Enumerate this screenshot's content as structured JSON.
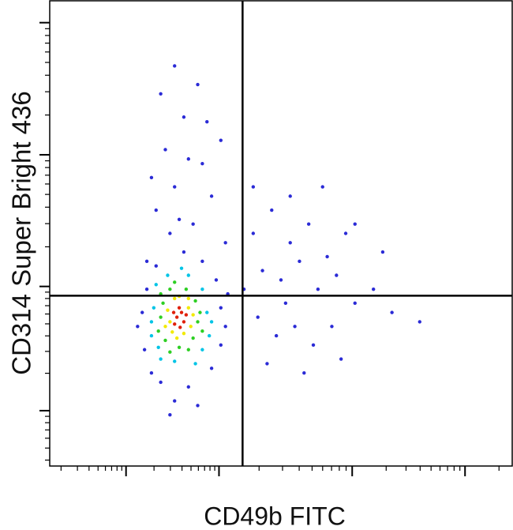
{
  "chart_data": {
    "type": "scatter",
    "x_label": "CD49b FITC",
    "y_label": "CD314 Super Bright 436",
    "xlim": [
      0,
      100
    ],
    "ylim": [
      0,
      100
    ],
    "xticks": [
      16.5,
      36.6,
      65.4,
      89.8
    ],
    "yticks": [
      11.9,
      38.6,
      66.9,
      95.3
    ],
    "gates": {
      "x": 41.7,
      "y": 36.6
    },
    "series": [
      {
        "color": "#2b2bd6",
        "x": [
          20,
          37,
          21,
          36,
          23,
          33,
          20.5,
          37,
          24,
          30,
          27,
          22,
          35,
          19,
          38,
          26,
          32,
          29,
          21,
          38.5,
          23,
          27,
          31,
          25,
          33,
          29,
          24,
          35,
          37,
          27,
          32,
          26,
          38,
          22,
          30,
          34,
          28,
          44,
          48,
          52,
          56,
          60,
          64,
          46,
          50,
          54,
          58,
          62,
          66,
          45,
          49,
          53,
          57,
          61,
          47,
          55,
          70,
          72,
          52,
          59,
          42,
          66,
          80,
          74,
          44,
          63,
          51
        ],
        "values": [
          33,
          34,
          38,
          40,
          43,
          44,
          25,
          26,
          18,
          17,
          14,
          20,
          21,
          30,
          30,
          11,
          13,
          46,
          44,
          37,
          55,
          60,
          52,
          68,
          65,
          75,
          80,
          58,
          70,
          86,
          82,
          50,
          48,
          62,
          66,
          74,
          53,
          50,
          55,
          48,
          52,
          45,
          50,
          42,
          40,
          44,
          38,
          41,
          35,
          32,
          28,
          30,
          26,
          30,
          22,
          20,
          38,
          46,
          58,
          60,
          38,
          52,
          31,
          33,
          60,
          23,
          35
        ]
      },
      {
        "color": "#00c4e6",
        "x": [
          22.5,
          34,
          23,
          33,
          25.5,
          30,
          22,
          34.5,
          27,
          24,
          31.5,
          22,
          35,
          28.5,
          23.5,
          33
        ],
        "values": [
          34,
          33,
          39,
          38,
          41,
          41,
          28,
          28,
          22.5,
          23,
          22,
          31,
          31,
          42.5,
          25.5,
          25
        ]
      },
      {
        "color": "#2ecf24",
        "x": [
          24,
          32,
          24.5,
          31.5,
          26,
          29.5,
          25,
          31,
          28,
          23.5,
          32.5,
          27,
          24,
          30,
          26,
          33
        ],
        "values": [
          32,
          31,
          35,
          35.5,
          38,
          38,
          27,
          27.5,
          25.5,
          29,
          33,
          39.5,
          37,
          25,
          24.5,
          29
        ]
      },
      {
        "color": "#f2ea00",
        "x": [
          26,
          30,
          25.5,
          30.5,
          27,
          29,
          26.5,
          31,
          25,
          28,
          30,
          27.5
        ],
        "values": [
          31,
          34,
          33.5,
          30,
          36,
          28.5,
          28.8,
          32.5,
          30,
          36.5,
          36,
          27.5
        ]
      },
      {
        "color": "#e0200a",
        "x": [
          27.5,
          28.5,
          27,
          29,
          28,
          26.8,
          29.5,
          28.2
        ],
        "values": [
          32,
          33,
          30.5,
          31,
          34,
          33,
          32.5,
          29.8
        ]
      }
    ]
  }
}
